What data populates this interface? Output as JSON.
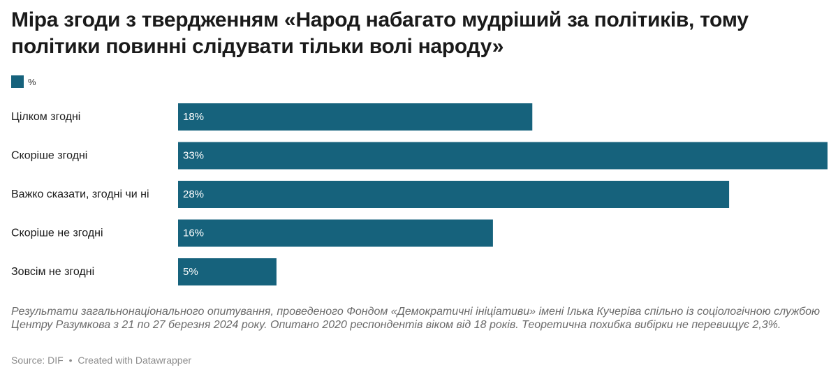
{
  "title": "Міра згоди з твердженням «Народ набагато мудріший за політиків, тому політики повинні слідувати тільки волі народу»",
  "legend": {
    "label": "%",
    "color": "#16627c"
  },
  "chart_data": {
    "type": "bar",
    "orientation": "horizontal",
    "categories": [
      "Цілком згодні",
      "Скоріше згодні",
      "Важко сказати, згодні чи ні",
      "Скоріше не згодні",
      "Зовсім не згодні"
    ],
    "series": [
      {
        "name": "%",
        "values": [
          18,
          33,
          28,
          16,
          5
        ]
      }
    ],
    "value_labels": [
      "18%",
      "33%",
      "28%",
      "16%",
      "5%"
    ],
    "xlim": [
      0,
      33
    ],
    "bar_color": "#16627c",
    "grid": false,
    "legend_position": "top-left"
  },
  "footnote": "Результати загальнонаціонального опитування, проведеного Фондом «Демократичні ініціативи» імені Ілька Кучеріва спільно із соціологічною службою Центру Разумкова з 21 по 27 березня 2024 року. Опитано 2020 респондентів віком від 18 років. Теоретична похибка вибірки не перевищує 2,3%.",
  "source": {
    "text": "Source: DIF",
    "separator": "•",
    "credit": "Created with Datawrapper"
  }
}
